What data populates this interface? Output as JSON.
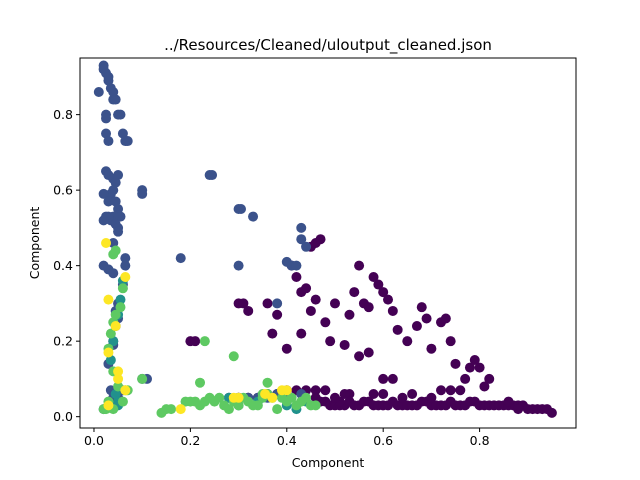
{
  "chart_data": {
    "type": "scatter",
    "title": "../Resources/Cleaned/uloutput_cleaned.json",
    "xlabel": "Component",
    "ylabel": "Component",
    "xlim": [
      -0.029,
      1.0
    ],
    "ylim": [
      -0.03,
      0.95
    ],
    "xticks": [
      0.0,
      0.2,
      0.4,
      0.6,
      0.8
    ],
    "yticks": [
      0.0,
      0.2,
      0.4,
      0.6,
      0.8
    ],
    "grid": false,
    "legend": "none",
    "series": [
      {
        "color": "#440154",
        "points": [
          [
            0.2,
            0.2
          ],
          [
            0.21,
            0.2
          ],
          [
            0.3,
            0.3
          ],
          [
            0.31,
            0.3
          ],
          [
            0.32,
            0.28
          ],
          [
            0.36,
            0.3
          ],
          [
            0.37,
            0.22
          ],
          [
            0.38,
            0.27
          ],
          [
            0.4,
            0.18
          ],
          [
            0.41,
            0.4
          ],
          [
            0.42,
            0.37
          ],
          [
            0.43,
            0.33
          ],
          [
            0.44,
            0.34
          ],
          [
            0.45,
            0.45
          ],
          [
            0.46,
            0.46
          ],
          [
            0.47,
            0.47
          ],
          [
            0.43,
            0.22
          ],
          [
            0.45,
            0.28
          ],
          [
            0.46,
            0.31
          ],
          [
            0.48,
            0.25
          ],
          [
            0.49,
            0.2
          ],
          [
            0.5,
            0.3
          ],
          [
            0.52,
            0.19
          ],
          [
            0.53,
            0.27
          ],
          [
            0.54,
            0.33
          ],
          [
            0.55,
            0.4
          ],
          [
            0.56,
            0.3
          ],
          [
            0.57,
            0.29
          ],
          [
            0.58,
            0.37
          ],
          [
            0.59,
            0.35
          ],
          [
            0.6,
            0.33
          ],
          [
            0.61,
            0.31
          ],
          [
            0.62,
            0.28
          ],
          [
            0.6,
            0.1
          ],
          [
            0.62,
            0.1
          ],
          [
            0.63,
            0.23
          ],
          [
            0.65,
            0.2
          ],
          [
            0.67,
            0.24
          ],
          [
            0.68,
            0.29
          ],
          [
            0.69,
            0.26
          ],
          [
            0.7,
            0.18
          ],
          [
            0.72,
            0.25
          ],
          [
            0.73,
            0.26
          ],
          [
            0.74,
            0.2
          ],
          [
            0.75,
            0.14
          ],
          [
            0.57,
            0.17
          ],
          [
            0.55,
            0.16
          ],
          [
            0.53,
            0.06
          ],
          [
            0.76,
            0.07
          ],
          [
            0.77,
            0.1
          ],
          [
            0.78,
            0.13
          ],
          [
            0.79,
            0.15
          ],
          [
            0.8,
            0.13
          ],
          [
            0.81,
            0.08
          ],
          [
            0.82,
            0.1
          ],
          [
            0.6,
            0.06
          ],
          [
            0.42,
            0.07
          ],
          [
            0.44,
            0.07
          ],
          [
            0.46,
            0.07
          ],
          [
            0.48,
            0.07
          ],
          [
            0.4,
            0.07
          ],
          [
            0.38,
            0.06
          ],
          [
            0.36,
            0.06
          ],
          [
            0.34,
            0.05
          ],
          [
            0.32,
            0.05
          ],
          [
            0.3,
            0.05
          ],
          [
            0.46,
            0.05
          ],
          [
            0.48,
            0.04
          ],
          [
            0.49,
            0.03
          ],
          [
            0.5,
            0.03
          ],
          [
            0.51,
            0.03
          ],
          [
            0.52,
            0.03
          ],
          [
            0.53,
            0.04
          ],
          [
            0.54,
            0.03
          ],
          [
            0.55,
            0.03
          ],
          [
            0.56,
            0.04
          ],
          [
            0.57,
            0.04
          ],
          [
            0.58,
            0.03
          ],
          [
            0.59,
            0.03
          ],
          [
            0.6,
            0.03
          ],
          [
            0.61,
            0.03
          ],
          [
            0.62,
            0.04
          ],
          [
            0.63,
            0.03
          ],
          [
            0.64,
            0.03
          ],
          [
            0.65,
            0.03
          ],
          [
            0.66,
            0.03
          ],
          [
            0.67,
            0.03
          ],
          [
            0.68,
            0.04
          ],
          [
            0.69,
            0.04
          ],
          [
            0.7,
            0.03
          ],
          [
            0.71,
            0.03
          ],
          [
            0.72,
            0.03
          ],
          [
            0.73,
            0.03
          ],
          [
            0.74,
            0.04
          ],
          [
            0.75,
            0.03
          ],
          [
            0.76,
            0.03
          ],
          [
            0.77,
            0.03
          ],
          [
            0.78,
            0.04
          ],
          [
            0.79,
            0.04
          ],
          [
            0.8,
            0.03
          ],
          [
            0.81,
            0.03
          ],
          [
            0.82,
            0.03
          ],
          [
            0.83,
            0.03
          ],
          [
            0.84,
            0.03
          ],
          [
            0.85,
            0.03
          ],
          [
            0.86,
            0.03
          ],
          [
            0.87,
            0.03
          ],
          [
            0.88,
            0.03
          ],
          [
            0.89,
            0.03
          ],
          [
            0.9,
            0.02
          ],
          [
            0.91,
            0.02
          ],
          [
            0.92,
            0.02
          ],
          [
            0.93,
            0.02
          ],
          [
            0.94,
            0.02
          ],
          [
            0.95,
            0.01
          ],
          [
            0.51,
            0.04
          ],
          [
            0.47,
            0.04
          ],
          [
            0.5,
            0.05
          ],
          [
            0.52,
            0.06
          ],
          [
            0.58,
            0.06
          ],
          [
            0.64,
            0.05
          ],
          [
            0.66,
            0.06
          ],
          [
            0.7,
            0.05
          ],
          [
            0.72,
            0.07
          ],
          [
            0.74,
            0.07
          ],
          [
            0.86,
            0.04
          ],
          [
            0.88,
            0.02
          ]
        ]
      },
      {
        "color": "#3b528b",
        "points": [
          [
            0.01,
            0.86
          ],
          [
            0.02,
            0.93
          ],
          [
            0.02,
            0.92
          ],
          [
            0.025,
            0.91
          ],
          [
            0.03,
            0.9
          ],
          [
            0.03,
            0.89
          ],
          [
            0.035,
            0.87
          ],
          [
            0.04,
            0.86
          ],
          [
            0.04,
            0.84
          ],
          [
            0.045,
            0.84
          ],
          [
            0.05,
            0.8
          ],
          [
            0.055,
            0.8
          ],
          [
            0.06,
            0.75
          ],
          [
            0.065,
            0.73
          ],
          [
            0.07,
            0.73
          ],
          [
            0.025,
            0.8
          ],
          [
            0.025,
            0.79
          ],
          [
            0.025,
            0.75
          ],
          [
            0.03,
            0.73
          ],
          [
            0.025,
            0.65
          ],
          [
            0.03,
            0.64
          ],
          [
            0.04,
            0.63
          ],
          [
            0.05,
            0.64
          ],
          [
            0.045,
            0.62
          ],
          [
            0.04,
            0.6
          ],
          [
            0.035,
            0.59
          ],
          [
            0.02,
            0.59
          ],
          [
            0.03,
            0.57
          ],
          [
            0.045,
            0.57
          ],
          [
            0.05,
            0.55
          ],
          [
            0.055,
            0.53
          ],
          [
            0.04,
            0.53
          ],
          [
            0.035,
            0.52
          ],
          [
            0.03,
            0.53
          ],
          [
            0.025,
            0.53
          ],
          [
            0.02,
            0.52
          ],
          [
            0.045,
            0.51
          ],
          [
            0.05,
            0.5
          ],
          [
            0.05,
            0.49
          ],
          [
            0.04,
            0.46
          ],
          [
            0.02,
            0.4
          ],
          [
            0.03,
            0.39
          ],
          [
            0.04,
            0.38
          ],
          [
            0.065,
            0.42
          ],
          [
            0.065,
            0.4
          ],
          [
            0.06,
            0.35
          ],
          [
            0.05,
            0.3
          ],
          [
            0.045,
            0.28
          ],
          [
            0.05,
            0.26
          ],
          [
            0.045,
            0.24
          ],
          [
            0.04,
            0.2
          ],
          [
            0.04,
            0.19
          ],
          [
            0.1,
            0.6
          ],
          [
            0.1,
            0.59
          ],
          [
            0.1,
            0.1
          ],
          [
            0.11,
            0.1
          ],
          [
            0.18,
            0.42
          ],
          [
            0.24,
            0.64
          ],
          [
            0.245,
            0.64
          ],
          [
            0.3,
            0.55
          ],
          [
            0.305,
            0.55
          ],
          [
            0.33,
            0.53
          ],
          [
            0.3,
            0.4
          ],
          [
            0.38,
            0.3
          ],
          [
            0.4,
            0.41
          ],
          [
            0.41,
            0.4
          ],
          [
            0.42,
            0.4
          ],
          [
            0.43,
            0.5
          ],
          [
            0.43,
            0.47
          ],
          [
            0.44,
            0.45
          ],
          [
            0.03,
            0.14
          ],
          [
            0.035,
            0.07
          ],
          [
            0.04,
            0.05
          ],
          [
            0.05,
            0.05
          ],
          [
            0.06,
            0.07
          ],
          [
            0.045,
            0.04
          ],
          [
            0.02,
            0.02
          ],
          [
            0.28,
            0.05
          ],
          [
            0.3,
            0.05
          ],
          [
            0.32,
            0.05
          ],
          [
            0.34,
            0.05
          ],
          [
            0.36,
            0.05
          ],
          [
            0.38,
            0.06
          ],
          [
            0.4,
            0.06
          ],
          [
            0.43,
            0.06
          ]
        ]
      },
      {
        "color": "#21918c",
        "points": [
          [
            0.04,
            0.2
          ],
          [
            0.05,
            0.27
          ],
          [
            0.055,
            0.31
          ],
          [
            0.06,
            0.36
          ],
          [
            0.035,
            0.15
          ],
          [
            0.045,
            0.06
          ],
          [
            0.05,
            0.04
          ],
          [
            0.05,
            0.03
          ],
          [
            0.28,
            0.05
          ],
          [
            0.34,
            0.04
          ],
          [
            0.3,
            0.03
          ],
          [
            0.4,
            0.03
          ],
          [
            0.44,
            0.04
          ],
          [
            0.42,
            0.02
          ]
        ]
      },
      {
        "color": "#5ec962",
        "points": [
          [
            0.04,
            0.43
          ],
          [
            0.045,
            0.44
          ],
          [
            0.06,
            0.34
          ],
          [
            0.055,
            0.29
          ],
          [
            0.045,
            0.27
          ],
          [
            0.04,
            0.25
          ],
          [
            0.035,
            0.22
          ],
          [
            0.03,
            0.18
          ],
          [
            0.04,
            0.12
          ],
          [
            0.05,
            0.08
          ],
          [
            0.065,
            0.07
          ],
          [
            0.07,
            0.07
          ],
          [
            0.03,
            0.04
          ],
          [
            0.02,
            0.02
          ],
          [
            0.025,
            0.02
          ],
          [
            0.03,
            0.03
          ],
          [
            0.04,
            0.02
          ],
          [
            0.06,
            0.04
          ],
          [
            0.1,
            0.1
          ],
          [
            0.15,
            0.02
          ],
          [
            0.14,
            0.01
          ],
          [
            0.16,
            0.02
          ],
          [
            0.19,
            0.04
          ],
          [
            0.2,
            0.04
          ],
          [
            0.21,
            0.04
          ],
          [
            0.22,
            0.03
          ],
          [
            0.23,
            0.04
          ],
          [
            0.24,
            0.05
          ],
          [
            0.25,
            0.04
          ],
          [
            0.26,
            0.05
          ],
          [
            0.27,
            0.03
          ],
          [
            0.28,
            0.02
          ],
          [
            0.29,
            0.04
          ],
          [
            0.3,
            0.03
          ],
          [
            0.31,
            0.05
          ],
          [
            0.32,
            0.04
          ],
          [
            0.33,
            0.03
          ],
          [
            0.34,
            0.03
          ],
          [
            0.35,
            0.05
          ],
          [
            0.36,
            0.06
          ],
          [
            0.37,
            0.05
          ],
          [
            0.38,
            0.02
          ],
          [
            0.39,
            0.05
          ],
          [
            0.4,
            0.04
          ],
          [
            0.41,
            0.05
          ],
          [
            0.42,
            0.03
          ],
          [
            0.43,
            0.04
          ],
          [
            0.44,
            0.05
          ],
          [
            0.45,
            0.03
          ],
          [
            0.46,
            0.03
          ],
          [
            0.22,
            0.09
          ],
          [
            0.23,
            0.2
          ],
          [
            0.29,
            0.16
          ],
          [
            0.35,
            0.06
          ],
          [
            0.36,
            0.09
          ]
        ]
      },
      {
        "color": "#fde725",
        "points": [
          [
            0.025,
            0.46
          ],
          [
            0.03,
            0.31
          ],
          [
            0.045,
            0.24
          ],
          [
            0.065,
            0.37
          ],
          [
            0.065,
            0.07
          ],
          [
            0.03,
            0.17
          ],
          [
            0.05,
            0.12
          ],
          [
            0.05,
            0.1
          ],
          [
            0.03,
            0.03
          ],
          [
            0.18,
            0.02
          ],
          [
            0.29,
            0.05
          ],
          [
            0.3,
            0.05
          ],
          [
            0.355,
            0.06
          ],
          [
            0.37,
            0.05
          ],
          [
            0.39,
            0.07
          ],
          [
            0.4,
            0.07
          ]
        ]
      }
    ]
  }
}
